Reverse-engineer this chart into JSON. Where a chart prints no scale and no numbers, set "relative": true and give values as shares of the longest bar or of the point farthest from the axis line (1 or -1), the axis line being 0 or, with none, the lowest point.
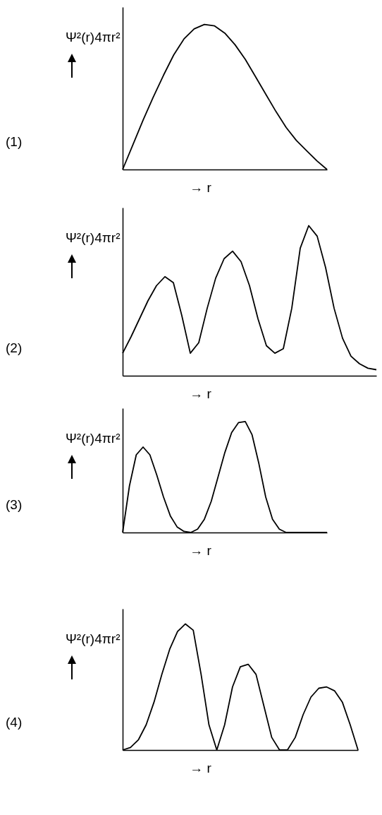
{
  "chart_data": [
    {
      "type": "line",
      "relative": true,
      "ylabel": "Ψ²(r)4πr²",
      "xlabel": "→ r",
      "annotations": [
        "(1)"
      ],
      "color": "#000000",
      "categories": [
        null,
        null,
        null,
        null,
        null,
        null,
        null,
        null,
        null,
        null,
        null,
        null,
        null,
        null,
        null,
        null,
        null,
        null,
        null,
        null,
        null
      ],
      "values": [
        0,
        0.17,
        0.34,
        0.5,
        0.65,
        0.79,
        0.9,
        0.97,
        1.0,
        0.99,
        0.94,
        0.86,
        0.76,
        0.64,
        0.52,
        0.4,
        0.29,
        0.2,
        0.13,
        0.06,
        0
      ]
    },
    {
      "type": "line",
      "relative": true,
      "ylabel": "Ψ²(r)4πr²",
      "xlabel": "→ r",
      "annotations": [
        "(2)"
      ],
      "color": "#000000",
      "categories": [
        null,
        null,
        null,
        null,
        null,
        null,
        null,
        null,
        null,
        null,
        null,
        null,
        null,
        null,
        null,
        null,
        null,
        null,
        null,
        null,
        null,
        null,
        null,
        null,
        null,
        null,
        null,
        null,
        null,
        null,
        null
      ],
      "values": [
        0.15,
        0.26,
        0.38,
        0.5,
        0.6,
        0.66,
        0.62,
        0.4,
        0.15,
        0.22,
        0.45,
        0.65,
        0.78,
        0.83,
        0.76,
        0.6,
        0.38,
        0.2,
        0.15,
        0.18,
        0.45,
        0.85,
        1.0,
        0.93,
        0.72,
        0.45,
        0.25,
        0.13,
        0.08,
        0.05,
        0.04
      ]
    },
    {
      "type": "line",
      "relative": true,
      "ylabel": "Ψ²(r)4πr²",
      "xlabel": "→ r",
      "annotations": [
        "(3)"
      ],
      "color": "#000000",
      "categories": [
        null,
        null,
        null,
        null,
        null,
        null,
        null,
        null,
        null,
        null,
        null,
        null,
        null,
        null,
        null,
        null,
        null,
        null,
        null,
        null,
        null,
        null,
        null,
        null,
        null,
        null,
        null,
        null,
        null,
        null,
        null
      ],
      "values": [
        0,
        0.42,
        0.7,
        0.77,
        0.7,
        0.52,
        0.32,
        0.15,
        0.05,
        0.01,
        0,
        0.03,
        0.12,
        0.28,
        0.5,
        0.72,
        0.9,
        0.99,
        1.0,
        0.88,
        0.62,
        0.32,
        0.12,
        0.03,
        0,
        0,
        0,
        0,
        0,
        0,
        0
      ]
    },
    {
      "type": "line",
      "relative": true,
      "ylabel": "Ψ²(r)4πr²",
      "xlabel": "→ r",
      "annotations": [
        "(4)"
      ],
      "color": "#000000",
      "categories": [
        null,
        null,
        null,
        null,
        null,
        null,
        null,
        null,
        null,
        null,
        null,
        null,
        null,
        null,
        null,
        null,
        null,
        null,
        null,
        null,
        null,
        null,
        null,
        null,
        null,
        null,
        null,
        null,
        null,
        null,
        null
      ],
      "values": [
        0,
        0.02,
        0.08,
        0.2,
        0.38,
        0.6,
        0.8,
        0.94,
        1.0,
        0.95,
        0.6,
        0.2,
        0,
        0.2,
        0.5,
        0.66,
        0.68,
        0.6,
        0.35,
        0.1,
        0,
        0,
        0.1,
        0.28,
        0.42,
        0.49,
        0.5,
        0.47,
        0.38,
        0.2,
        0
      ]
    }
  ]
}
